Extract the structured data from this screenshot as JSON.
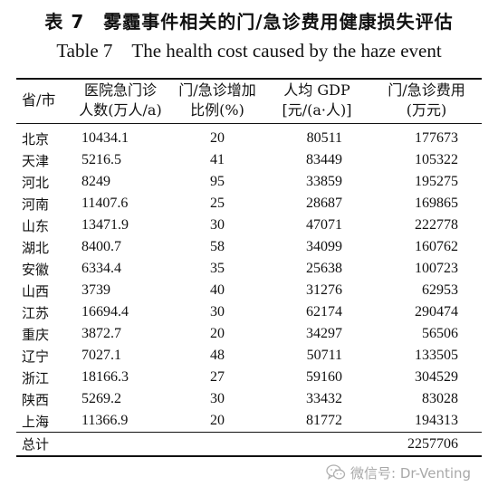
{
  "document": {
    "title_cn": "表 7　雾霾事件相关的门/急诊费用健康损失评估",
    "title_en": "Table 7　The health cost caused by the haze event"
  },
  "table": {
    "headers": {
      "province": "省/市",
      "population": [
        "医院急门诊",
        "人数(万人/a)"
      ],
      "increase": [
        "门/急诊增加",
        "比例(%)"
      ],
      "gdp": [
        "人均 GDP",
        "[元/(a·人)]"
      ],
      "cost": [
        "门/急诊费用",
        "(万元)"
      ]
    },
    "rows": [
      {
        "province": "北京",
        "population": "10434.1",
        "increase": "20",
        "gdp": "80511",
        "cost": "177673"
      },
      {
        "province": "天津",
        "population": "5216.5",
        "increase": "41",
        "gdp": "83449",
        "cost": "105322"
      },
      {
        "province": "河北",
        "population": "8249",
        "increase": "95",
        "gdp": "33859",
        "cost": "195275"
      },
      {
        "province": "河南",
        "population": "11407.6",
        "increase": "25",
        "gdp": "28687",
        "cost": "169865"
      },
      {
        "province": "山东",
        "population": "13471.9",
        "increase": "30",
        "gdp": "47071",
        "cost": "222778"
      },
      {
        "province": "湖北",
        "population": "8400.7",
        "increase": "58",
        "gdp": "34099",
        "cost": "160762"
      },
      {
        "province": "安徽",
        "population": "6334.4",
        "increase": "35",
        "gdp": "25638",
        "cost": "100723"
      },
      {
        "province": "山西",
        "population": "3739",
        "increase": "40",
        "gdp": "31276",
        "cost": "62953"
      },
      {
        "province": "江苏",
        "population": "16694.4",
        "increase": "30",
        "gdp": "62174",
        "cost": "290474"
      },
      {
        "province": "重庆",
        "population": "3872.7",
        "increase": "20",
        "gdp": "34297",
        "cost": "56506"
      },
      {
        "province": "辽宁",
        "population": "7027.1",
        "increase": "48",
        "gdp": "50711",
        "cost": "133505"
      },
      {
        "province": "浙江",
        "population": "18166.3",
        "increase": "27",
        "gdp": "59160",
        "cost": "304529"
      },
      {
        "province": "陕西",
        "population": "5269.2",
        "increase": "30",
        "gdp": "33432",
        "cost": "83028"
      },
      {
        "province": "上海",
        "population": "11366.9",
        "increase": "20",
        "gdp": "81772",
        "cost": "194313"
      }
    ],
    "total": {
      "label": "总计",
      "cost": "2257706"
    }
  },
  "watermark": {
    "text": "微信号: Dr-Venting",
    "icon": "wechat-icon",
    "color": "#a8a8a8"
  }
}
